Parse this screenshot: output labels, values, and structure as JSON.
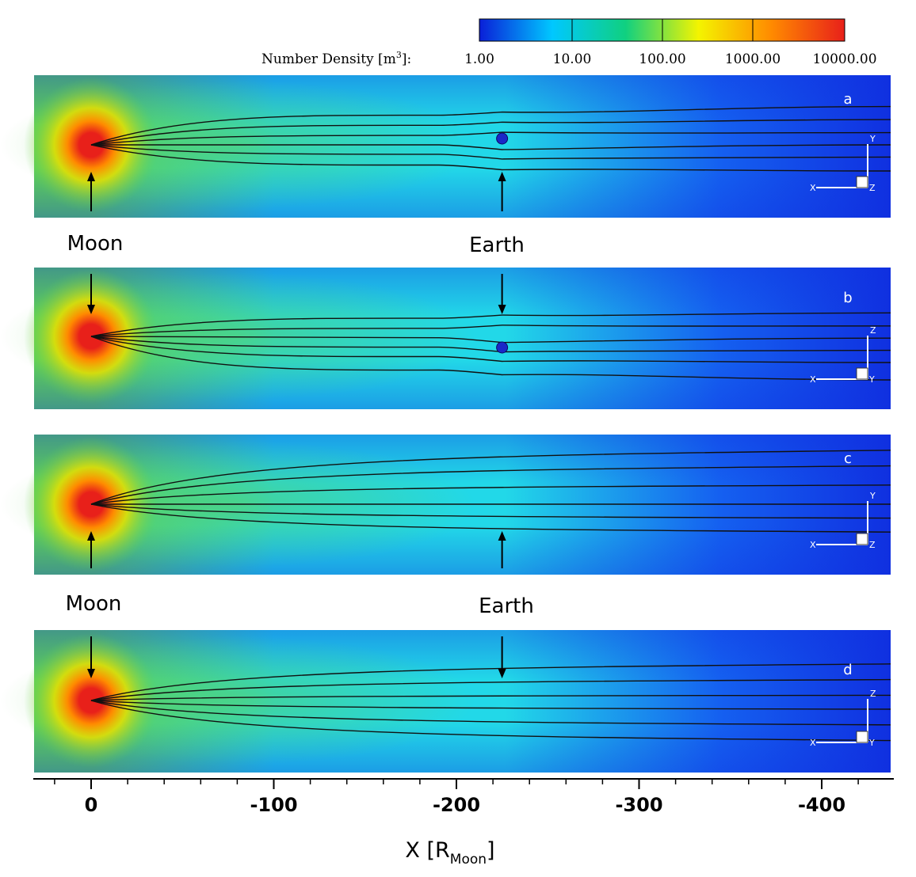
{
  "colorbar": {
    "title_prefix": "Number Density [m",
    "title_sup": "3",
    "title_suffix": "]:",
    "tick_labels": [
      "1.00",
      "10.00",
      "100.00",
      "1000.00",
      "10000.00"
    ],
    "colors": [
      "#0a1fd8",
      "#00c8ff",
      "#10d080",
      "#f4f400",
      "#ff8a00",
      "#e8201a"
    ]
  },
  "bodies": {
    "moon": "Moon",
    "earth": "Earth"
  },
  "panels": [
    {
      "letter": "a",
      "triad": {
        "h": "X",
        "v": "Y",
        "n": "Z"
      },
      "arrow_dir": "up"
    },
    {
      "letter": "b",
      "triad": {
        "h": "X",
        "v": "Z",
        "n": "Y"
      },
      "arrow_dir": "down"
    },
    {
      "letter": "c",
      "triad": {
        "h": "X",
        "v": "Y",
        "n": "Z"
      },
      "arrow_dir": "up"
    },
    {
      "letter": "d",
      "triad": {
        "h": "X",
        "v": "Z",
        "n": "Y"
      },
      "arrow_dir": "down"
    }
  ],
  "x_axis": {
    "title_main": "X [R",
    "title_sub": "Moon",
    "title_end": "]",
    "ticks": [
      {
        "value": 0,
        "label": "0"
      },
      {
        "value": -100,
        "label": "-100"
      },
      {
        "value": -200,
        "label": "-200"
      },
      {
        "value": -300,
        "label": "-300"
      },
      {
        "value": -400,
        "label": "-400"
      }
    ],
    "minor_step": 20,
    "range": [
      30,
      -440
    ]
  },
  "moon_x": 0,
  "earth_x": -225,
  "density_colors": {
    "core": "#e8201a",
    "inner": "#ff8a00",
    "yellow": "#e8e000",
    "green": "#5ed058",
    "cyan": "#22d8e8",
    "blue": "#1560f0",
    "deep": "#1030e0"
  },
  "streamline_color": "#111111",
  "earth_color": "#1a28c8"
}
